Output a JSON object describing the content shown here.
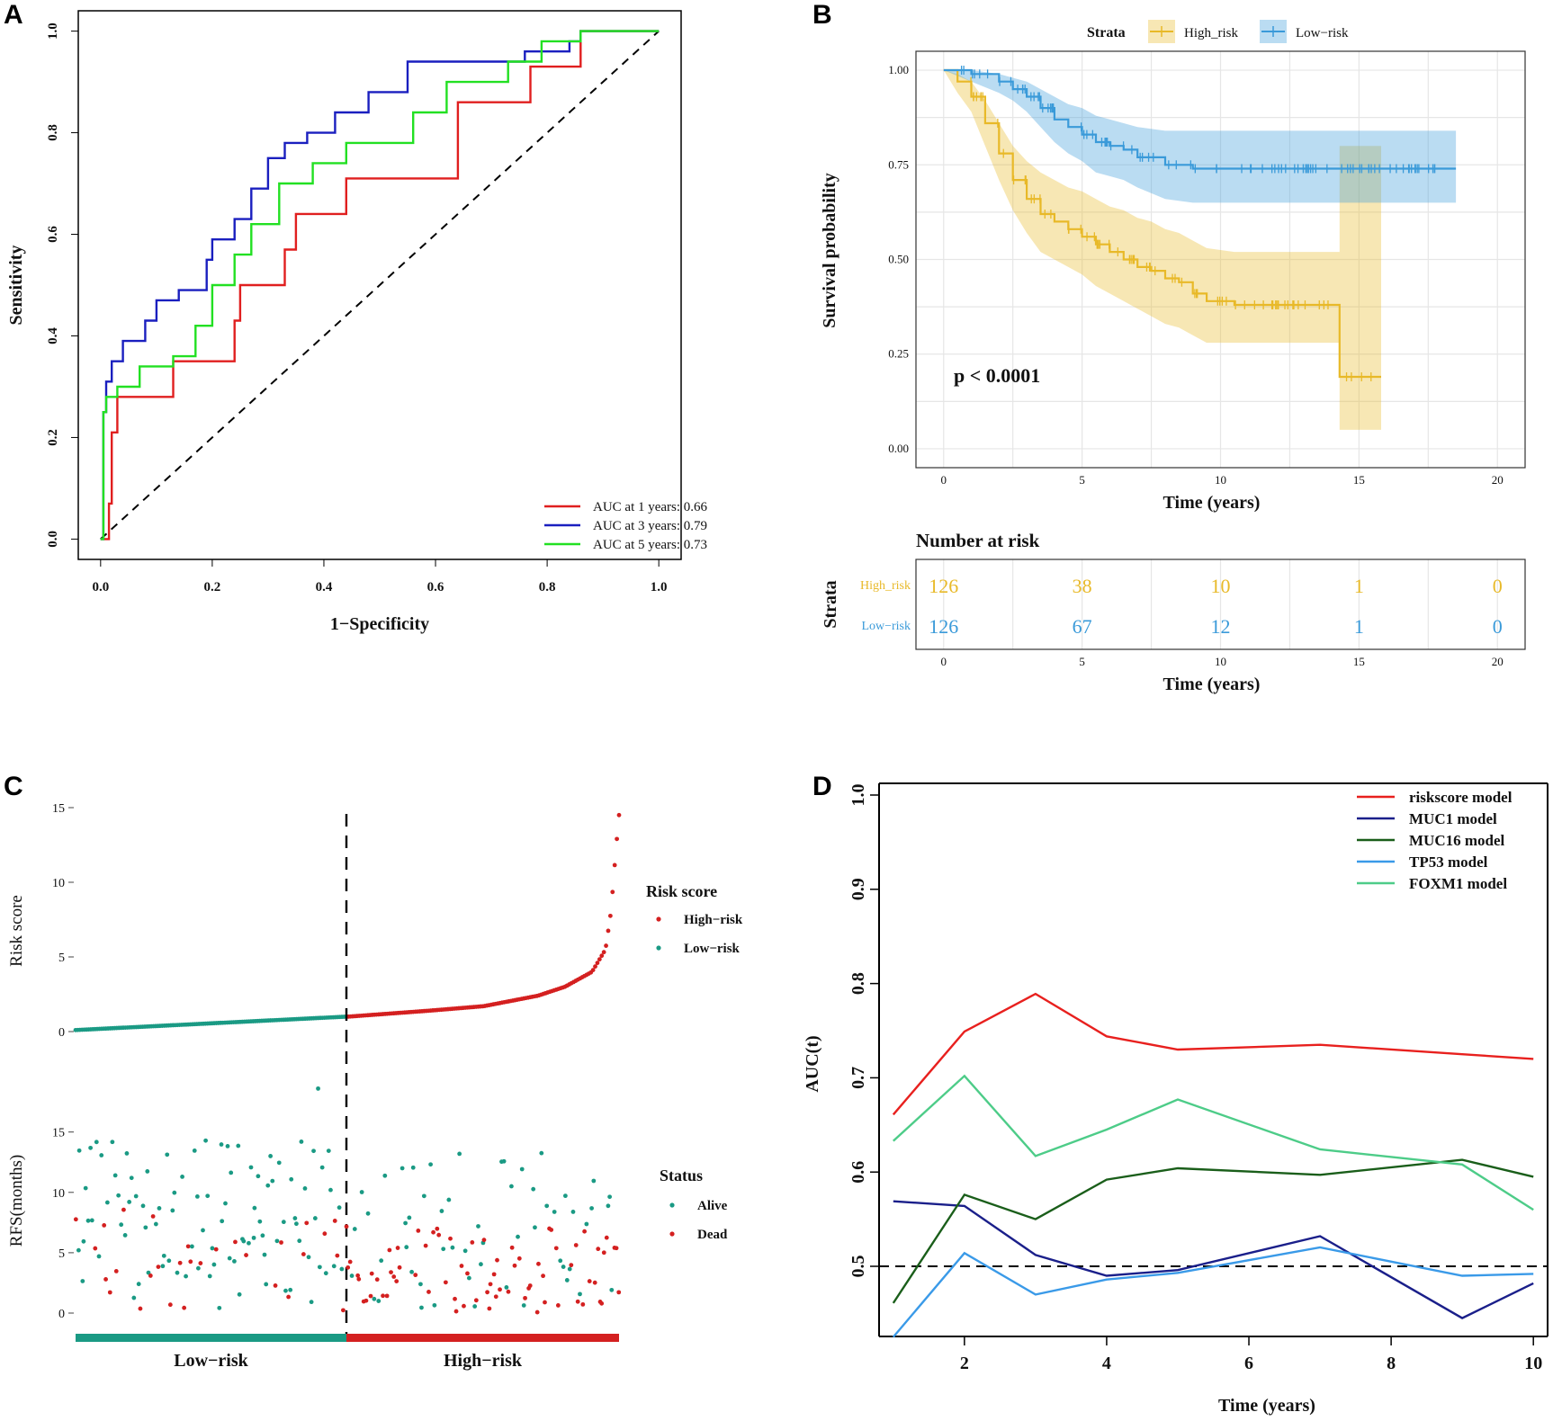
{
  "panels": {
    "A": {
      "letter": "A"
    },
    "B": {
      "letter": "B"
    },
    "C": {
      "letter": "C"
    },
    "D": {
      "letter": "D"
    }
  },
  "chart_data": [
    {
      "id": "A",
      "type": "line",
      "title": "",
      "xlabel": "1−Specificity",
      "ylabel": "Sensitivity",
      "xlim": [
        0,
        1
      ],
      "ylim": [
        0,
        1
      ],
      "xticks": [
        "0.0",
        "0.2",
        "0.4",
        "0.6",
        "0.8",
        "1.0"
      ],
      "yticks": [
        "0.0",
        "0.2",
        "0.4",
        "0.6",
        "0.8",
        "1.0"
      ],
      "legend_position": "bottom-right",
      "diagonal": "dashed reference line y = x",
      "series": [
        {
          "name": "AUC at 1 years: 0.66",
          "color": "#e01f1f",
          "x": [
            0,
            0.015,
            0.015,
            0.02,
            0.02,
            0.03,
            0.03,
            0.05,
            0.05,
            0.13,
            0.13,
            0.24,
            0.24,
            0.25,
            0.25,
            0.33,
            0.33,
            0.35,
            0.35,
            0.39,
            0.39,
            0.44,
            0.44,
            0.64,
            0.64,
            0.77,
            0.77,
            0.86,
            0.86,
            1.0
          ],
          "y": [
            0,
            0,
            0.07,
            0.07,
            0.21,
            0.21,
            0.28,
            0.28,
            0.28,
            0.28,
            0.35,
            0.35,
            0.43,
            0.43,
            0.5,
            0.5,
            0.57,
            0.57,
            0.64,
            0.64,
            0.64,
            0.64,
            0.71,
            0.71,
            0.86,
            0.86,
            0.93,
            0.93,
            1.0,
            1.0
          ]
        },
        {
          "name": "AUC at 3 years: 0.79",
          "color": "#1a1fbf",
          "x": [
            0,
            0.005,
            0.005,
            0.01,
            0.01,
            0.02,
            0.02,
            0.04,
            0.04,
            0.08,
            0.08,
            0.1,
            0.1,
            0.14,
            0.14,
            0.19,
            0.19,
            0.2,
            0.2,
            0.24,
            0.24,
            0.27,
            0.27,
            0.3,
            0.3,
            0.33,
            0.33,
            0.37,
            0.37,
            0.42,
            0.42,
            0.48,
            0.48,
            0.55,
            0.55,
            0.76,
            0.76,
            0.84,
            0.84,
            0.86,
            0.86,
            1.0
          ],
          "y": [
            0,
            0,
            0.25,
            0.25,
            0.31,
            0.31,
            0.35,
            0.35,
            0.39,
            0.39,
            0.43,
            0.43,
            0.47,
            0.47,
            0.49,
            0.49,
            0.55,
            0.55,
            0.59,
            0.59,
            0.63,
            0.63,
            0.69,
            0.69,
            0.75,
            0.75,
            0.78,
            0.78,
            0.8,
            0.8,
            0.84,
            0.84,
            0.88,
            0.88,
            0.94,
            0.94,
            0.96,
            0.96,
            0.98,
            0.98,
            1.0,
            1.0
          ]
        },
        {
          "name": "AUC at 5 years: 0.73",
          "color": "#22e022",
          "x": [
            0,
            0.005,
            0.005,
            0.01,
            0.01,
            0.03,
            0.03,
            0.07,
            0.07,
            0.13,
            0.13,
            0.17,
            0.17,
            0.2,
            0.2,
            0.24,
            0.24,
            0.27,
            0.27,
            0.32,
            0.32,
            0.38,
            0.38,
            0.44,
            0.44,
            0.56,
            0.56,
            0.62,
            0.62,
            0.73,
            0.73,
            0.79,
            0.79,
            0.86,
            0.86,
            1.0
          ],
          "y": [
            0,
            0,
            0.25,
            0.25,
            0.28,
            0.28,
            0.3,
            0.3,
            0.34,
            0.34,
            0.36,
            0.36,
            0.42,
            0.42,
            0.5,
            0.5,
            0.56,
            0.56,
            0.62,
            0.62,
            0.7,
            0.7,
            0.74,
            0.74,
            0.78,
            0.78,
            0.84,
            0.84,
            0.9,
            0.9,
            0.94,
            0.94,
            0.98,
            0.98,
            1.0,
            1.0
          ]
        }
      ]
    },
    {
      "id": "B",
      "type": "line",
      "title": "",
      "legend_title": "Strata",
      "xlabel": "Time (years)",
      "ylabel": "Survival probability",
      "xlim": [
        -1,
        21
      ],
      "ylim": [
        -0.05,
        1.05
      ],
      "xticks": [
        "0",
        "5",
        "10",
        "15",
        "20"
      ],
      "yticks": [
        "0.00",
        "0.25",
        "0.50",
        "0.75",
        "1.00"
      ],
      "annotation": "p < 0.0001",
      "series": [
        {
          "name": "High_risk",
          "color": "#e8b928",
          "x": [
            0,
            0.5,
            1.0,
            1.5,
            2.0,
            2.5,
            3.0,
            3.5,
            4.0,
            4.5,
            5.0,
            5.5,
            6.0,
            6.5,
            7.0,
            7.5,
            8.0,
            8.5,
            9.0,
            9.5,
            10.5,
            11.5,
            12.5,
            14.3,
            14.3,
            15.8
          ],
          "y": [
            1.0,
            0.97,
            0.93,
            0.86,
            0.78,
            0.71,
            0.66,
            0.62,
            0.6,
            0.58,
            0.56,
            0.54,
            0.52,
            0.5,
            0.48,
            0.47,
            0.45,
            0.44,
            0.41,
            0.39,
            0.38,
            0.38,
            0.38,
            0.38,
            0.19,
            0.19
          ],
          "ci_upper": [
            1.0,
            0.99,
            0.97,
            0.92,
            0.86,
            0.8,
            0.76,
            0.73,
            0.71,
            0.69,
            0.68,
            0.66,
            0.64,
            0.63,
            0.61,
            0.6,
            0.58,
            0.57,
            0.55,
            0.53,
            0.52,
            0.52,
            0.52,
            0.52,
            0.8,
            0.8
          ],
          "ci_lower": [
            1.0,
            0.94,
            0.89,
            0.8,
            0.71,
            0.63,
            0.57,
            0.52,
            0.5,
            0.48,
            0.46,
            0.43,
            0.41,
            0.39,
            0.37,
            0.35,
            0.33,
            0.32,
            0.3,
            0.28,
            0.28,
            0.28,
            0.28,
            0.28,
            0.05,
            0.05
          ]
        },
        {
          "name": "Low−risk",
          "color": "#3a9ad9",
          "x": [
            0,
            1.0,
            2.0,
            2.5,
            3.0,
            3.5,
            4.0,
            4.5,
            5.0,
            5.5,
            6.0,
            6.5,
            7.0,
            8.0,
            9.0,
            10.0,
            12.0,
            14.0,
            16.0,
            18.5
          ],
          "y": [
            1.0,
            0.99,
            0.97,
            0.95,
            0.93,
            0.9,
            0.87,
            0.85,
            0.83,
            0.81,
            0.8,
            0.79,
            0.77,
            0.75,
            0.74,
            0.74,
            0.74,
            0.74,
            0.74,
            0.74
          ],
          "ci_upper": [
            1.0,
            1.0,
            0.99,
            0.98,
            0.97,
            0.95,
            0.93,
            0.91,
            0.9,
            0.88,
            0.87,
            0.86,
            0.85,
            0.84,
            0.84,
            0.84,
            0.84,
            0.84,
            0.84,
            0.84
          ],
          "ci_lower": [
            1.0,
            0.97,
            0.94,
            0.92,
            0.89,
            0.85,
            0.81,
            0.78,
            0.76,
            0.73,
            0.72,
            0.71,
            0.69,
            0.66,
            0.65,
            0.65,
            0.65,
            0.65,
            0.65,
            0.65
          ]
        }
      ],
      "risk_table": {
        "title": "Number at risk",
        "ylabel": "Strata",
        "xlabel": "Time (years)",
        "times": [
          0,
          5,
          10,
          15,
          20
        ],
        "xticks": [
          "0",
          "5",
          "10",
          "15",
          "20"
        ],
        "rows": [
          {
            "label": "High_risk",
            "color": "#e8b928",
            "counts": [
              "126",
              "38",
              "10",
              "1",
              "0"
            ]
          },
          {
            "label": "Low−risk",
            "color": "#3a9ad9",
            "counts": [
              "126",
              "67",
              "12",
              "1",
              "0"
            ]
          }
        ]
      }
    },
    {
      "id": "C",
      "type": "scatter",
      "title": "",
      "top": {
        "ylabel": "Risk score",
        "yticks": [
          "0",
          "5",
          "10",
          "15"
        ],
        "ylim": [
          0,
          15
        ],
        "legend_title": "Risk score",
        "legend": [
          {
            "name": "High−risk",
            "color": "#d42020"
          },
          {
            "name": "Low−risk",
            "color": "#1a9a84"
          }
        ],
        "n_low": 126,
        "n_high": 126,
        "low_range": [
          0.1,
          1.0
        ],
        "high_profile": [
          [
            0,
            1.0
          ],
          [
            0.3,
            1.4
          ],
          [
            0.5,
            1.7
          ],
          [
            0.7,
            2.4
          ],
          [
            0.8,
            3.0
          ],
          [
            0.9,
            4.0
          ],
          [
            0.95,
            5.5
          ],
          [
            0.97,
            8.0
          ],
          [
            0.99,
            12.5
          ],
          [
            1.0,
            14.5
          ]
        ]
      },
      "bottom": {
        "ylabel": "RFS(months)",
        "yticks": [
          "0",
          "5",
          "10",
          "15"
        ],
        "ylim": [
          0,
          19
        ],
        "legend_title": "Status",
        "legend": [
          {
            "name": "Alive",
            "color": "#1a9a84"
          },
          {
            "name": "Dead",
            "color": "#d42020"
          }
        ],
        "group_labels": [
          "Low−risk",
          "High−risk"
        ],
        "group_colors": [
          "#1a9a84",
          "#d42020"
        ]
      }
    },
    {
      "id": "D",
      "type": "line",
      "title": "",
      "xlabel": "Time (years)",
      "ylabel": "AUC(t)",
      "xlim": [
        0.8,
        10.2
      ],
      "ylim": [
        0.43,
        1.01
      ],
      "xticks": [
        2,
        4,
        6,
        8,
        10
      ],
      "yticks": [
        "0.5",
        "0.6",
        "0.7",
        "0.8",
        "0.9",
        "1.0"
      ],
      "reference": {
        "y": 0.5,
        "style": "dashed"
      },
      "x": [
        1,
        2,
        3,
        4,
        5,
        7,
        9,
        10
      ],
      "series": [
        {
          "name": "riskscore model",
          "color": "#e8201e",
          "values": [
            0.661,
            0.749,
            0.789,
            0.744,
            0.73,
            0.735,
            0.725,
            0.72
          ]
        },
        {
          "name": "MUC1 model",
          "color": "#1a1f8a",
          "values": [
            0.569,
            0.564,
            0.512,
            0.49,
            0.496,
            0.532,
            0.445,
            0.482
          ]
        },
        {
          "name": "MUC16 model",
          "color": "#1a5e1a",
          "values": [
            0.461,
            0.576,
            0.55,
            0.592,
            0.604,
            0.597,
            0.613,
            0.595
          ]
        },
        {
          "name": "TP53 model",
          "color": "#3a9ae8",
          "values": [
            0.425,
            0.514,
            0.47,
            0.486,
            0.493,
            0.52,
            0.49,
            0.492
          ]
        },
        {
          "name": "FOXM1 model",
          "color": "#4dcc88",
          "values": [
            0.633,
            0.702,
            0.617,
            0.645,
            0.677,
            0.624,
            0.608,
            0.56
          ]
        }
      ]
    }
  ]
}
